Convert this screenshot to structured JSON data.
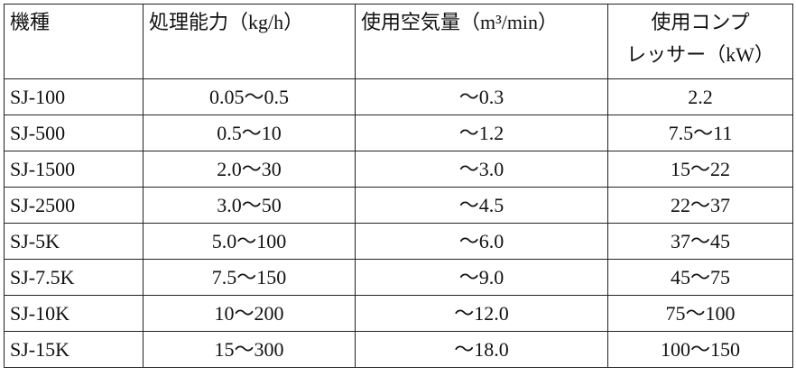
{
  "table": {
    "header": [
      "機種",
      "処理能力（kg/h）",
      "使用空気量（m³/min）",
      [
        "使用コンプ",
        "レッサー（kW）"
      ]
    ],
    "rows": [
      [
        "SJ-100",
        "0.05～0.5",
        "～0.3",
        "2.2"
      ],
      [
        "SJ-500",
        "0.5～10",
        "～1.2",
        "7.5～11"
      ],
      [
        "SJ-1500",
        "2.0～30",
        "～3.0",
        "15～22"
      ],
      [
        "SJ-2500",
        "3.0～50",
        "～4.5",
        "22～37"
      ],
      [
        "SJ-5K",
        "5.0～100",
        "～6.0",
        "37～45"
      ],
      [
        "SJ-7.5K",
        "7.5～150",
        "～9.0",
        "45～75"
      ],
      [
        "SJ-10K",
        "10～200",
        "～12.0",
        "75～100"
      ],
      [
        "SJ-15K",
        "15～300",
        "～18.0",
        "100～150"
      ]
    ]
  }
}
